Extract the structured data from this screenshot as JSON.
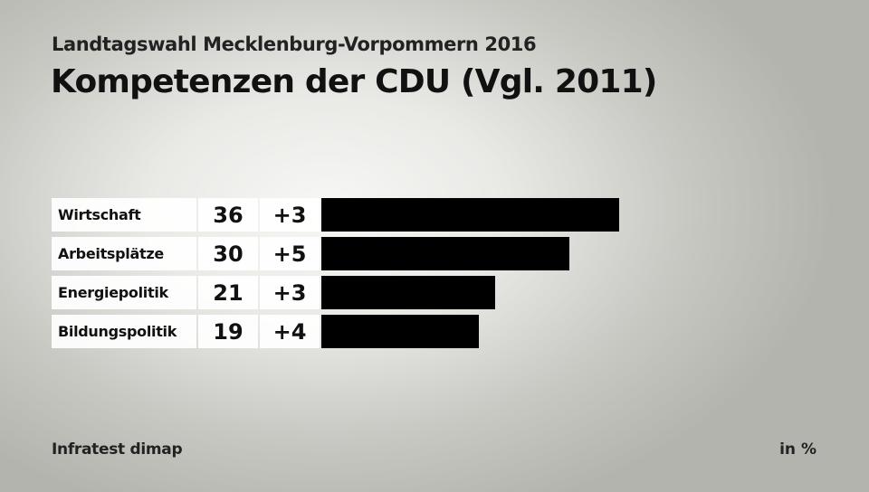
{
  "subtitle": "Landtagswahl Mecklenburg-Vorpommern 2016",
  "title": "Kompetenzen der CDU (Vgl. 2011)",
  "source": "Infratest dimap",
  "unit": "in %",
  "colors": {
    "bar": "#000000",
    "cell_background": "#ffffff"
  },
  "chart_data": {
    "type": "bar",
    "orientation": "horizontal",
    "title": "Kompetenzen der CDU (Vgl. 2011)",
    "categories": [
      "Wirtschaft",
      "Arbeitsplätze",
      "Energiepolitik",
      "Bildungspolitik"
    ],
    "values": [
      36,
      30,
      21,
      19
    ],
    "value_labels": [
      "36",
      "30",
      "21",
      "19"
    ],
    "diff_labels": [
      "+3",
      "+5",
      "+3",
      "+4"
    ],
    "xlim": [
      0,
      36
    ],
    "grid": false,
    "legend": "none"
  }
}
